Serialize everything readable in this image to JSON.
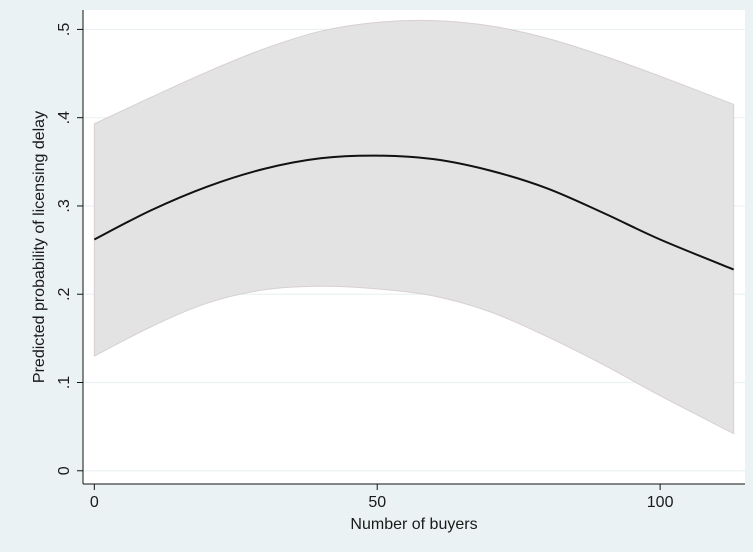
{
  "chart_data": {
    "type": "line",
    "xlabel": "Number of buyers",
    "ylabel": "Predicted probability of licensing delay",
    "xlim": [
      -2,
      115
    ],
    "ylim": [
      -0.015,
      0.522
    ],
    "xticks": [
      0,
      50,
      100
    ],
    "xtick_labels": [
      "0",
      "50",
      "100"
    ],
    "yticks": [
      0,
      0.1,
      0.2,
      0.3,
      0.4,
      0.5
    ],
    "ytick_labels": [
      "0",
      ".1",
      ".2",
      ".3",
      ".4",
      ".5"
    ],
    "grid": true,
    "legend": "none",
    "colors": {
      "outer_background": "#eaf2f3",
      "plot_background": "#ffffff",
      "gridline": "#eaf2f3",
      "ci_band": "#e3e3e3",
      "ci_edge": "#d8cfd0",
      "line": "#111111"
    },
    "series": [
      {
        "role": "prediction",
        "x": [
          0,
          10,
          20,
          30,
          40,
          50,
          60,
          70,
          80,
          90,
          100,
          113
        ],
        "values": [
          0.262,
          0.295,
          0.322,
          0.342,
          0.354,
          0.357,
          0.353,
          0.34,
          0.32,
          0.292,
          0.262,
          0.228
        ]
      },
      {
        "role": "ci-upper",
        "x": [
          0,
          10,
          20,
          30,
          40,
          50,
          60,
          70,
          80,
          90,
          100,
          113
        ],
        "values": [
          0.393,
          0.423,
          0.452,
          0.478,
          0.498,
          0.508,
          0.51,
          0.504,
          0.49,
          0.47,
          0.447,
          0.415
        ]
      },
      {
        "role": "ci-lower",
        "x": [
          0,
          10,
          20,
          30,
          40,
          50,
          60,
          70,
          80,
          90,
          100,
          113
        ],
        "values": [
          0.13,
          0.163,
          0.19,
          0.205,
          0.209,
          0.206,
          0.198,
          0.18,
          0.152,
          0.12,
          0.085,
          0.042
        ]
      }
    ]
  }
}
